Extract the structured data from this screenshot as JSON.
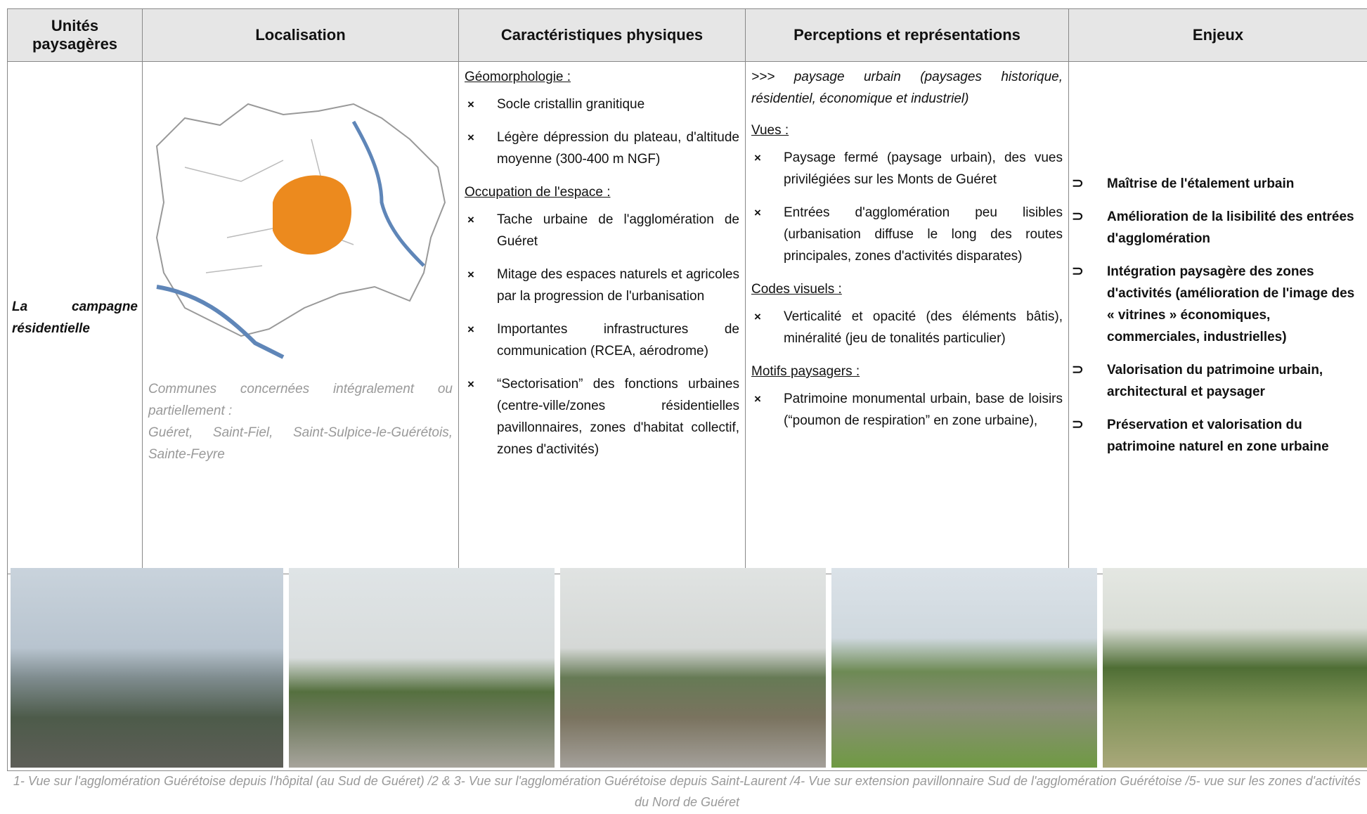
{
  "header": {
    "columns": [
      "Unités paysagères",
      "Localisation",
      "Caractéristiques physiques",
      "Perceptions et représentations",
      "Enjeux"
    ]
  },
  "row": {
    "unit": "La campagne résidentielle",
    "localisation": {
      "communes_label": "Communes concernées intégralement ou partiellement :",
      "communes": "Guéret, Saint-Fiel, Saint-Sulpice-le-Guérétois, Sainte-Feyre"
    },
    "physical": [
      {
        "heading": "Géomorphologie :",
        "items": [
          "Socle cristallin granitique",
          "Légère dépression du plateau, d'altitude moyenne (300-400 m NGF)"
        ]
      },
      {
        "heading": "Occupation de l'espace :",
        "items": [
          "Tache urbaine de l'agglomération de Guéret",
          "Mitage des espaces naturels et agricoles par la progression de l'urbanisation",
          "Importantes infrastructures de communication (RCEA, aérodrome)",
          "“Sectorisation” des fonctions urbaines (centre-ville/zones résidentielles pavillonnaires, zones d'habitat collectif, zones d'activités)"
        ]
      }
    ],
    "perceptions": {
      "intro": ">>> paysage urbain (paysages historique, résidentiel, économique et industriel)",
      "sections": [
        {
          "heading": "Vues :",
          "items": [
            "Paysage fermé (paysage urbain), des vues privilégiées sur les Monts de Guéret",
            "Entrées d'agglomération peu lisibles (urbanisation diffuse le long des routes principales, zones d'activités disparates)"
          ]
        },
        {
          "heading": "Codes visuels :",
          "items": [
            "Verticalité et opacité (des éléments bâtis), minéralité (jeu de tonalités particulier)"
          ]
        },
        {
          "heading": "Motifs paysagers :",
          "items": [
            "Patrimoine monumental urbain, base de loisirs (“poumon de respiration” en zone urbaine),"
          ]
        }
      ]
    },
    "enjeux": [
      "Maîtrise de l'étalement urbain",
      "Amélioration de la lisibilité des entrées d'agglomération",
      "Intégration paysagère des zones d'activités (amélioration de l'image des « vitrines » économiques, commerciales, industrielles)",
      "Valorisation du patrimoine urbain, architectural et paysager",
      "Préservation et valorisation du patrimoine naturel en zone urbaine"
    ]
  },
  "caption": "1- Vue sur l'agglomération Guérétoise depuis l'hôpital (au Sud de Guéret) /2 & 3- Vue sur l'agglomération Guérétoise depuis Saint-Laurent /4- Vue sur extension pavillonnaire Sud de l'agglomération Guérétoise /5- vue sur les zones d'activités du Nord de Guéret"
}
